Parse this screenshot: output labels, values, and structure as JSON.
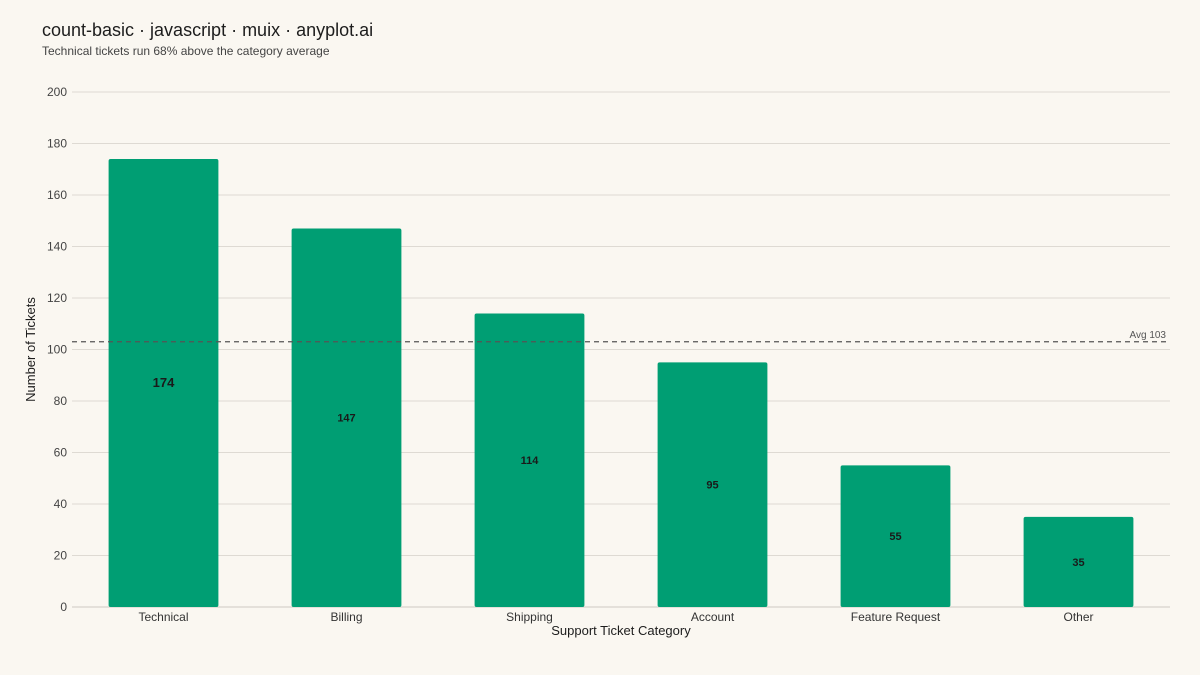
{
  "chart_data": {
    "type": "bar",
    "title": "count-basic · javascript · muix · anyplot.ai",
    "subtitle": "Technical tickets run 68% above the category average",
    "xlabel": "Support Ticket Category",
    "ylabel": "Number of Tickets",
    "categories": [
      "Technical",
      "Billing",
      "Shipping",
      "Account",
      "Feature Request",
      "Other"
    ],
    "values": [
      174,
      147,
      114,
      95,
      55,
      35
    ],
    "data_labels": [
      "174",
      "147",
      "114",
      "95",
      "55",
      "35"
    ],
    "ylim": [
      0,
      200
    ],
    "yticks": [
      "0",
      "20",
      "40",
      "60",
      "80",
      "100",
      "120",
      "140",
      "160",
      "180",
      "200"
    ],
    "average": {
      "value": 103,
      "label": "Avg 103"
    },
    "grid": true,
    "bar_color": "#009E73",
    "reference_line_color": "#555555"
  }
}
